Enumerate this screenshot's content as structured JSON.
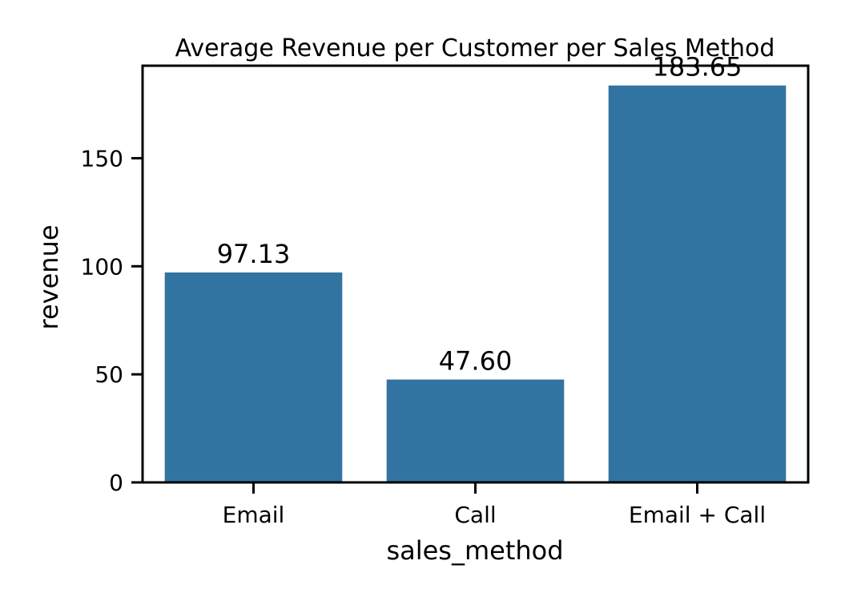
{
  "chart_data": {
    "type": "bar",
    "title": "Average Revenue per Customer per Sales Method",
    "xlabel": "sales_method",
    "ylabel": "revenue",
    "categories": [
      "Email",
      "Call",
      "Email + Call"
    ],
    "values": [
      97.13,
      47.6,
      183.65
    ],
    "data_labels": [
      "97.13",
      "47.60",
      "183.65"
    ],
    "ylim": [
      0,
      192.8
    ],
    "yticks": [
      0,
      50,
      100,
      150
    ],
    "ytick_labels": [
      "0",
      "50",
      "100",
      "150"
    ],
    "grid": false,
    "legend": "none",
    "bar_color": "#3274a1"
  }
}
